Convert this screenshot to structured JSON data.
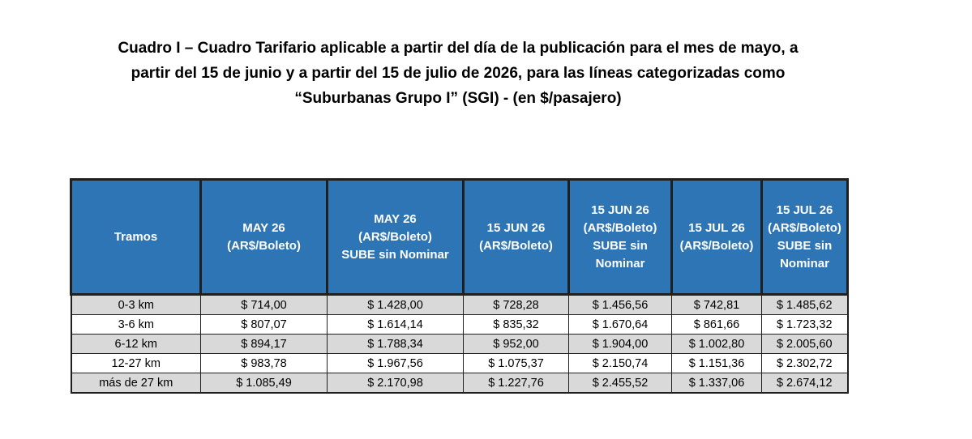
{
  "title": {
    "line1": "Cuadro I – Cuadro Tarifario aplicable a partir del día de la publicación para el mes de mayo, a",
    "line2": "partir del 15 de junio y a partir del 15 de julio de 2026, para las líneas categorizadas como",
    "line3": "“Suburbanas Grupo I” (SGI) - (en $/pasajero)"
  },
  "colors": {
    "header_bg": "#2e75b6",
    "header_text": "#ffffff",
    "shaded_row": "#d9d9d9"
  },
  "table": {
    "headers": [
      {
        "lines": [
          "Tramos"
        ]
      },
      {
        "lines": [
          "MAY 26",
          "(AR$/Boleto)"
        ]
      },
      {
        "lines": [
          "MAY 26",
          "(AR$/Boleto)",
          "SUBE sin Nominar"
        ]
      },
      {
        "lines": [
          "15 JUN 26",
          "(AR$/Boleto)"
        ]
      },
      {
        "lines": [
          "15 JUN 26",
          "(AR$/Boleto)",
          "SUBE sin",
          "Nominar"
        ]
      },
      {
        "lines": [
          "15 JUL 26",
          "(AR$/Boleto)"
        ]
      },
      {
        "lines": [
          "15 JUL 26",
          "(AR$/Boleto)",
          "SUBE sin",
          "Nominar"
        ]
      }
    ],
    "rows": [
      {
        "tramo": "0-3 km",
        "values": [
          "$ 714,00",
          "$ 1.428,00",
          "$ 728,28",
          "$ 1.456,56",
          "$ 742,81",
          "$ 1.485,62"
        ]
      },
      {
        "tramo": "3-6 km",
        "values": [
          "$ 807,07",
          "$ 1.614,14",
          "$ 835,32",
          "$ 1.670,64",
          "$ 861,66",
          "$ 1.723,32"
        ]
      },
      {
        "tramo": "6-12 km",
        "values": [
          "$ 894,17",
          "$ 1.788,34",
          "$ 952,00",
          "$ 1.904,00",
          "$ 1.002,80",
          "$ 2.005,60"
        ]
      },
      {
        "tramo": "12-27 km",
        "values": [
          "$ 983,78",
          "$ 1.967,56",
          "$ 1.075,37",
          "$ 2.150,74",
          "$ 1.151,36",
          "$ 2.302,72"
        ]
      },
      {
        "tramo": "más de 27 km",
        "values": [
          "$ 1.085,49",
          "$ 2.170,98",
          "$ 1.227,76",
          "$ 2.455,52",
          "$ 1.337,06",
          "$ 2.674,12"
        ]
      }
    ]
  }
}
